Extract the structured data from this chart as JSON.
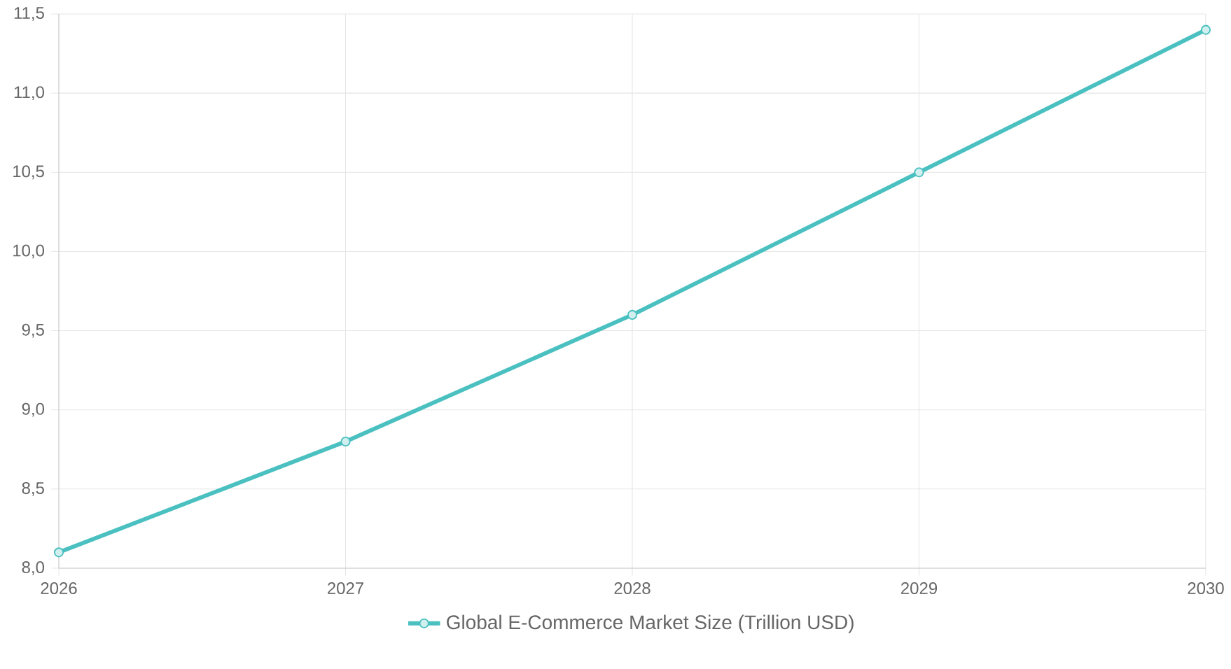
{
  "chart_data": {
    "type": "line",
    "categories": [
      "2026",
      "2027",
      "2028",
      "2029",
      "2030"
    ],
    "series": [
      {
        "name": "Global E-Commerce Market Size (Trillion USD)",
        "color": "#4bc0c0",
        "values": [
          8.1,
          8.8,
          9.6,
          10.5,
          11.4
        ]
      }
    ],
    "ylim": [
      8,
      11.5
    ],
    "yticks": [
      {
        "value": 8,
        "label": "8,0"
      },
      {
        "value": 8.5,
        "label": "8,5"
      },
      {
        "value": 9,
        "label": "9,0"
      },
      {
        "value": 9.5,
        "label": "9,5"
      },
      {
        "value": 10,
        "label": "10,0"
      },
      {
        "value": 10.5,
        "label": "10,5"
      },
      {
        "value": 11,
        "label": "11,0"
      },
      {
        "value": 11.5,
        "label": "11,5"
      }
    ],
    "grid": true,
    "legend": "bottom",
    "marker": "circle",
    "line_style": "solid"
  }
}
